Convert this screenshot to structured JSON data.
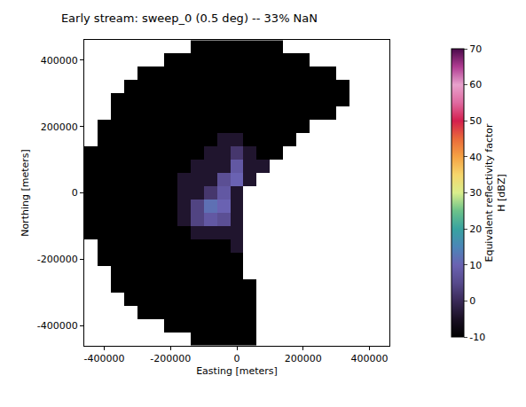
{
  "chart_data": {
    "type": "heatmap",
    "title": "Early stream: sweep_0 (0.5 deg) -- 33% NaN",
    "x_label": "Easting [meters]",
    "y_label": "Northing [meters]",
    "x": [
      -440000,
      -400000,
      -360000,
      -320000,
      -280000,
      -240000,
      -200000,
      -160000,
      -120000,
      -80000,
      -40000,
      0,
      40000,
      80000,
      120000,
      160000,
      200000,
      240000,
      280000,
      320000,
      360000,
      400000,
      440000
    ],
    "y": [
      -440000,
      -400000,
      -360000,
      -320000,
      -280000,
      -240000,
      -200000,
      -160000,
      -120000,
      -80000,
      -40000,
      0,
      40000,
      80000,
      120000,
      160000,
      200000,
      240000,
      280000,
      320000,
      360000,
      400000,
      440000
    ],
    "z": [
      [
        null,
        null,
        null,
        null,
        null,
        null,
        null,
        null,
        -10,
        -10,
        -10,
        -10,
        -10,
        null,
        null,
        null,
        null,
        null,
        null,
        null,
        null,
        null,
        null
      ],
      [
        null,
        null,
        null,
        null,
        null,
        null,
        -10,
        -10,
        -10,
        -10,
        -10,
        -10,
        -10,
        null,
        null,
        null,
        null,
        null,
        null,
        null,
        null,
        null,
        null
      ],
      [
        null,
        null,
        null,
        null,
        -10,
        -10,
        -10,
        -10,
        -10,
        -10,
        -10,
        -10,
        -10,
        null,
        null,
        null,
        null,
        null,
        null,
        null,
        null,
        null,
        null
      ],
      [
        null,
        null,
        null,
        -10,
        -10,
        -10,
        -10,
        -10,
        -10,
        -10,
        -10,
        -10,
        -10,
        null,
        null,
        null,
        null,
        null,
        null,
        null,
        null,
        null,
        null
      ],
      [
        null,
        null,
        -10,
        -10,
        -10,
        -10,
        -10,
        -10,
        -10,
        -10,
        -10,
        -10,
        -10,
        null,
        null,
        null,
        null,
        null,
        null,
        null,
        null,
        null,
        null
      ],
      [
        null,
        null,
        -10,
        -10,
        -10,
        -10,
        -10,
        -10,
        -10,
        -10,
        -10,
        -10,
        null,
        null,
        null,
        null,
        null,
        null,
        null,
        null,
        null,
        null,
        null
      ],
      [
        null,
        -10,
        -10,
        -10,
        -10,
        -10,
        -10,
        -10,
        -10,
        -10,
        -10,
        -10,
        null,
        null,
        null,
        null,
        null,
        null,
        null,
        null,
        null,
        null,
        null
      ],
      [
        null,
        -10,
        -10,
        -10,
        -10,
        -10,
        -10,
        -10,
        -10,
        -10,
        -10,
        -4,
        null,
        null,
        null,
        null,
        null,
        null,
        null,
        null,
        null,
        null,
        null
      ],
      [
        -10,
        -10,
        -10,
        -10,
        -10,
        -10,
        -10,
        -10,
        -4,
        -4,
        -4,
        -4,
        null,
        null,
        null,
        null,
        null,
        null,
        null,
        null,
        null,
        null,
        null
      ],
      [
        -10,
        -10,
        -10,
        -10,
        -10,
        -10,
        -10,
        -4,
        4,
        8,
        6,
        -4,
        null,
        null,
        null,
        null,
        null,
        null,
        null,
        null,
        null,
        null,
        null
      ],
      [
        -10,
        -10,
        -10,
        -10,
        -10,
        -10,
        -10,
        -4,
        4,
        12,
        10,
        -4,
        null,
        null,
        null,
        null,
        null,
        null,
        null,
        null,
        null,
        null,
        null
      ],
      [
        -10,
        -10,
        -10,
        -10,
        -10,
        -10,
        -10,
        -4,
        -4,
        2,
        8,
        -4,
        null,
        null,
        null,
        null,
        null,
        null,
        null,
        null,
        null,
        null,
        null
      ],
      [
        -10,
        -10,
        -10,
        -10,
        -10,
        -10,
        -10,
        -4,
        -4,
        -4,
        6,
        10,
        -4,
        null,
        null,
        null,
        null,
        null,
        null,
        null,
        null,
        null,
        null
      ],
      [
        -10,
        -10,
        -10,
        -10,
        -10,
        -10,
        -10,
        -10,
        -4,
        -4,
        -4,
        8,
        -4,
        -4,
        null,
        null,
        null,
        null,
        null,
        null,
        null,
        null,
        null
      ],
      [
        -10,
        -10,
        -10,
        -10,
        -10,
        -10,
        -10,
        -10,
        -10,
        -4,
        -4,
        2,
        -4,
        -10,
        -10,
        null,
        null,
        null,
        null,
        null,
        null,
        null,
        null
      ],
      [
        null,
        -10,
        -10,
        -10,
        -10,
        -10,
        -10,
        -10,
        -10,
        -10,
        -4,
        -4,
        -10,
        -10,
        -10,
        -10,
        null,
        null,
        null,
        null,
        null,
        null,
        null
      ],
      [
        null,
        -10,
        -10,
        -10,
        -10,
        -10,
        -10,
        -10,
        -10,
        -10,
        -10,
        -10,
        -10,
        -10,
        -10,
        -10,
        -10,
        null,
        null,
        null,
        null,
        null,
        null
      ],
      [
        null,
        null,
        -10,
        -10,
        -10,
        -10,
        -10,
        -10,
        -10,
        -10,
        -10,
        -10,
        -10,
        -10,
        -10,
        -10,
        -10,
        -10,
        -10,
        null,
        null,
        null,
        null
      ],
      [
        null,
        null,
        -10,
        -10,
        -10,
        -10,
        -10,
        -10,
        -10,
        -10,
        -10,
        -10,
        -10,
        -10,
        -10,
        -10,
        -10,
        -10,
        -10,
        -10,
        null,
        null,
        null
      ],
      [
        null,
        null,
        null,
        -10,
        -10,
        -10,
        -10,
        -10,
        -10,
        -10,
        -10,
        -10,
        -10,
        -10,
        -10,
        -10,
        -10,
        -10,
        -10,
        -10,
        null,
        null,
        null
      ],
      [
        null,
        null,
        null,
        null,
        -10,
        -10,
        -10,
        -10,
        -10,
        -10,
        -10,
        -10,
        -10,
        -10,
        -10,
        -10,
        -10,
        -10,
        -10,
        null,
        null,
        null,
        null
      ],
      [
        null,
        null,
        null,
        null,
        null,
        null,
        -10,
        -10,
        -10,
        -10,
        -10,
        -10,
        -10,
        -10,
        -10,
        -10,
        -10,
        null,
        null,
        null,
        null,
        null,
        null
      ],
      [
        null,
        null,
        null,
        null,
        null,
        null,
        null,
        null,
        -10,
        -10,
        -10,
        -10,
        -10,
        -10,
        -10,
        null,
        null,
        null,
        null,
        null,
        null,
        null,
        null
      ]
    ],
    "xlim": [
      -460000,
      460000
    ],
    "ylim": [
      -460000,
      460000
    ],
    "xticks": [
      -400000,
      -200000,
      0,
      200000,
      400000
    ],
    "yticks": [
      -400000,
      -200000,
      0,
      200000,
      400000
    ],
    "colorbar_label": [
      "Equivalent reflectivity factor",
      "H [dBZ]"
    ],
    "colorbar_range": [
      -10,
      70
    ],
    "colorbar_ticks": [
      -10,
      0,
      10,
      20,
      30,
      40,
      50,
      60,
      70
    ]
  }
}
